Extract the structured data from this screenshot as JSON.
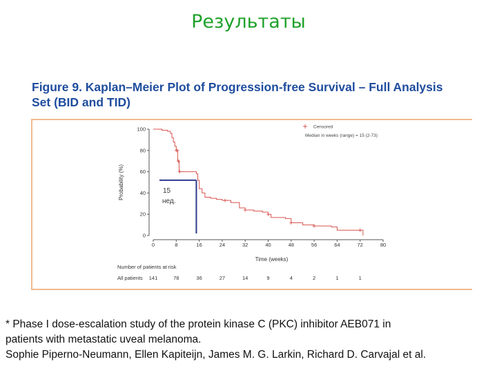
{
  "slide": {
    "title": "Результаты",
    "figure_title_line1": "Figure 9. Kaplan–Meier Plot of Progression-free Survival – Full Analysis",
    "figure_title_line2": "Set (BID and TID)",
    "footnote": [
      "* Phase I dose-escalation study of the protein kinase C (PKC) inhibitor AEB071 in",
      "patients with metastatic uveal melanoma.",
      "Sophie Piperno-Neumann, Ellen Kapiteijn, James M. G. Larkin, Richard D. Carvajal et al."
    ]
  },
  "chart_data": {
    "type": "line",
    "title": "Figure 9. Kaplan–Meier Plot of Progression-free Survival – Full Analysis Set (BID and TID)",
    "xlabel": "Time (weeks)",
    "ylabel": "Probability (%)",
    "xlim": [
      0,
      80
    ],
    "ylim": [
      0,
      100
    ],
    "x_ticks": [
      0,
      8,
      16,
      24,
      32,
      40,
      48,
      56,
      64,
      72,
      80
    ],
    "y_ticks": [
      0,
      20,
      40,
      60,
      80,
      100
    ],
    "legend": {
      "position": "top-right",
      "entries": [
        "Censored",
        "Median in weeks (range) = 15 (2-73)"
      ]
    },
    "series": [
      {
        "x": [
          0,
          1,
          3,
          5,
          6,
          6.5,
          7,
          7.5,
          8,
          8.5,
          9,
          15,
          15.5,
          16,
          17,
          18,
          20,
          22,
          24,
          27,
          30,
          32,
          35,
          38,
          40,
          41,
          46,
          48,
          52,
          56,
          62,
          64,
          72,
          73
        ],
        "y": [
          100,
          100,
          99,
          98,
          96,
          92,
          88,
          84,
          80,
          70,
          60,
          58,
          52,
          44,
          40,
          36,
          35,
          34,
          33,
          31,
          26,
          24,
          23,
          22,
          20,
          17,
          16,
          12,
          10,
          9,
          8,
          5,
          5,
          0
        ]
      }
    ],
    "censored_x": [
      8,
      8.4,
      8.8,
      9.2,
      25,
      32,
      40,
      48,
      56,
      72
    ],
    "annotation_median": {
      "x": 15,
      "y": 52,
      "label": [
        "15",
        "нед."
      ]
    },
    "risk_table": {
      "title": "Number of patients at risk",
      "row_label": "All patients",
      "x": [
        0,
        8,
        16,
        24,
        32,
        40,
        48,
        56,
        64,
        72
      ],
      "counts": [
        "141",
        "78",
        "36",
        "27",
        "14",
        "9",
        "4",
        "2",
        "1",
        "1"
      ]
    }
  },
  "colors": {
    "curve": "#d9534f",
    "median_marker": "#2b3a8c",
    "axis": "#555555",
    "box_border": "#f2b98f",
    "title_green": "#1fa22a",
    "figure_title_blue": "#1f4d9e"
  }
}
